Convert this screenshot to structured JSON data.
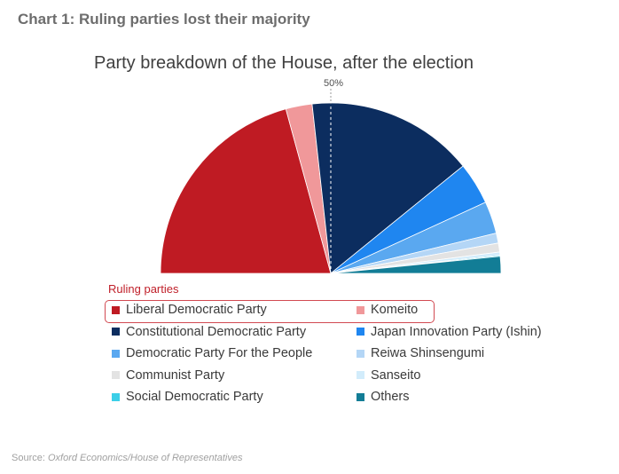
{
  "page_title": "Chart 1: Ruling parties lost their majority",
  "source_prefix": "Source: ",
  "source_text": "Oxford Economics/House of Representatives",
  "chart_data": {
    "type": "pie",
    "variant": "half-donut (parliament, no hole)",
    "title": "Party breakdown of the House, after the election",
    "marker_label": "50%",
    "legend_group_label": "Ruling parties",
    "units": "share of seats (%)",
    "slices": [
      {
        "name": "Liberal Democratic Party",
        "value": 41.5,
        "color": "#bf1b23",
        "ruling": true
      },
      {
        "name": "Komeito",
        "value": 5.0,
        "color": "#f0989a",
        "ruling": true
      },
      {
        "name": "Constitutional Democratic Party",
        "value": 31.8,
        "color": "#0c2d5f",
        "ruling": false
      },
      {
        "name": "Japan Innovation Party (Ishin)",
        "value": 8.0,
        "color": "#1f86f0",
        "ruling": false
      },
      {
        "name": "Democratic Party For the People",
        "value": 6.1,
        "color": "#5aa8f0",
        "ruling": false
      },
      {
        "name": "Reiwa Shinsengumi",
        "value": 1.9,
        "color": "#b4d6f6",
        "ruling": false
      },
      {
        "name": "Communist Party",
        "value": 1.7,
        "color": "#e3e3e3",
        "ruling": false
      },
      {
        "name": "Sanseito",
        "value": 0.6,
        "color": "#d2ecfb",
        "ruling": false
      },
      {
        "name": "Social Democratic Party",
        "value": 0.2,
        "color": "#3ccfe8",
        "ruling": false
      },
      {
        "name": "Others",
        "value": 3.2,
        "color": "#127d96",
        "ruling": false
      }
    ]
  }
}
